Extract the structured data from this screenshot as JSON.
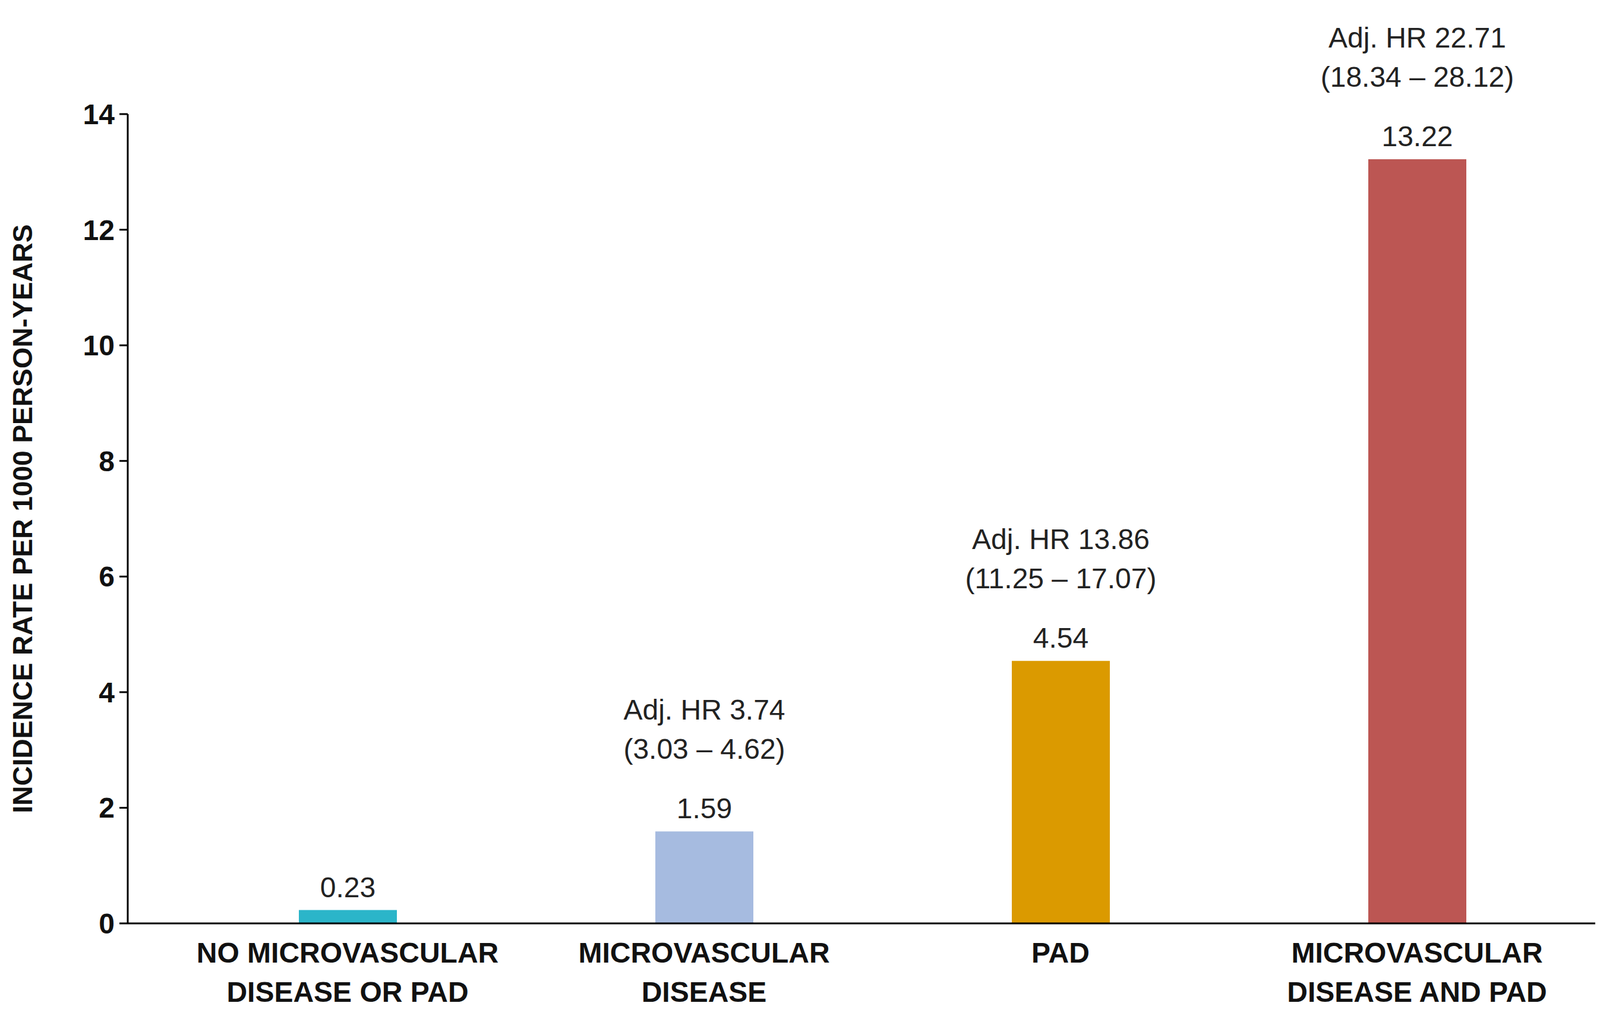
{
  "chart_data": {
    "type": "bar",
    "y_label": "INCIDENCE RATE PER 1000 PERSON-YEARS",
    "categories": [
      "NO MICROVASCULAR DISEASE OR PAD",
      "MICROVASCULAR DISEASE",
      "PAD",
      "MICROVASCULAR DISEASE AND PAD"
    ],
    "values": [
      0.23,
      1.59,
      4.54,
      13.22
    ],
    "colors": [
      "#2bb5c9",
      "#a6bbe0",
      "#db9a00",
      "#bc5653"
    ],
    "ylim": [
      0,
      14
    ],
    "yticks": [
      0,
      2,
      4,
      6,
      8,
      10,
      12,
      14
    ],
    "grid": false,
    "data_labels": true,
    "annotations": [
      {
        "category": "MICROVASCULAR DISEASE",
        "lines": [
          "Adj. HR 3.74",
          "(3.03 – 4.62)"
        ]
      },
      {
        "category": "PAD",
        "lines": [
          "Adj. HR 13.86",
          "(11.25 – 17.07)"
        ]
      },
      {
        "category": "MICROVASCULAR DISEASE AND PAD",
        "lines": [
          "Adj. HR 22.71",
          "(18.34 – 28.12)"
        ]
      }
    ]
  }
}
